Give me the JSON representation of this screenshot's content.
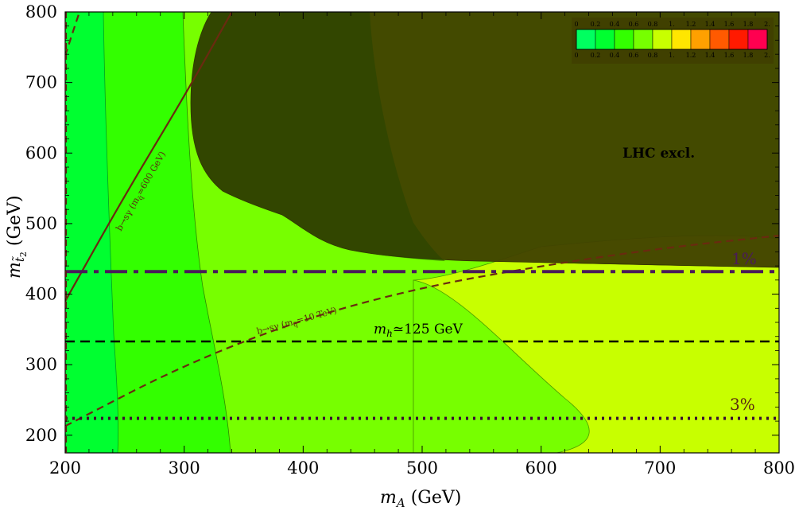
{
  "chart_data": {
    "type": "contour",
    "xlabel_main": "m",
    "xlabel_sub": "A",
    "xlabel_unit": " (GeV)",
    "ylabel_main": "m",
    "ylabel_sub": "t̃",
    "ylabel_subsub": "2",
    "ylabel_unit": " (GeV)",
    "xlim": [
      200,
      800
    ],
    "ylim": [
      175,
      800
    ],
    "xticks": [
      "200",
      "300",
      "400",
      "500",
      "600",
      "700",
      "800"
    ],
    "yticks": [
      "200",
      "300",
      "400",
      "500",
      "600",
      "700",
      "800"
    ],
    "colorbar": {
      "labels": [
        "0",
        "0.2",
        "0.4",
        "0.6",
        "0.8",
        "1.",
        "1.2",
        "1.4",
        "1.6",
        "1.8",
        "2."
      ],
      "colors": [
        "#00ff60",
        "#00ff30",
        "#33ff00",
        "#77ff00",
        "#c8ff00",
        "#ffe600",
        "#ffa000",
        "#ff5a00",
        "#ff1a00",
        "#ff0050"
      ]
    },
    "regions": [
      {
        "level": "0-0.2",
        "color": "#00ff30"
      },
      {
        "level": "0.2-0.4",
        "color": "#33ff00"
      },
      {
        "level": "0.4-0.6",
        "color": "#77ff00"
      },
      {
        "level": "0.6-0.8",
        "color": "#c8ff00"
      }
    ],
    "excluded_region": {
      "label": "LHC excl.",
      "color": "#404000"
    },
    "lines": [
      {
        "label": "1%",
        "style": "dash-dot",
        "y": 432
      },
      {
        "label": "m_h≃125 GeV",
        "style": "dashed",
        "y": 333
      },
      {
        "label": "3%",
        "style": "dotted",
        "y": 224
      }
    ],
    "curves": [
      {
        "label": "b→sγ (m_q̃=600 GeV)",
        "style": "solid",
        "points": [
          [
            200,
            390
          ],
          [
            250,
            540
          ],
          [
            300,
            680
          ],
          [
            340,
            800
          ]
        ]
      },
      {
        "label": "b→sγ (m_q̃=10 TeV)",
        "style": "dashed",
        "points": [
          [
            200,
            213
          ],
          [
            300,
            300
          ],
          [
            400,
            365
          ],
          [
            500,
            410
          ],
          [
            600,
            440
          ],
          [
            700,
            465
          ],
          [
            800,
            483
          ]
        ]
      }
    ],
    "annotations": {
      "lhc_label": "LHC excl.",
      "one_percent": "1%",
      "three_percent": "3%",
      "mh_label_main": "m",
      "mh_label_sub": "h",
      "mh_label_rest": "≃125 GeV",
      "bsg600": "b→sγ (m",
      "bsg600_sub": "q̃",
      "bsg600_rest": "=600 GeV)",
      "bsg10": "b→sγ (m",
      "bsg10_sub": "q̃",
      "bsg10_rest": "=10 TeV)"
    }
  }
}
